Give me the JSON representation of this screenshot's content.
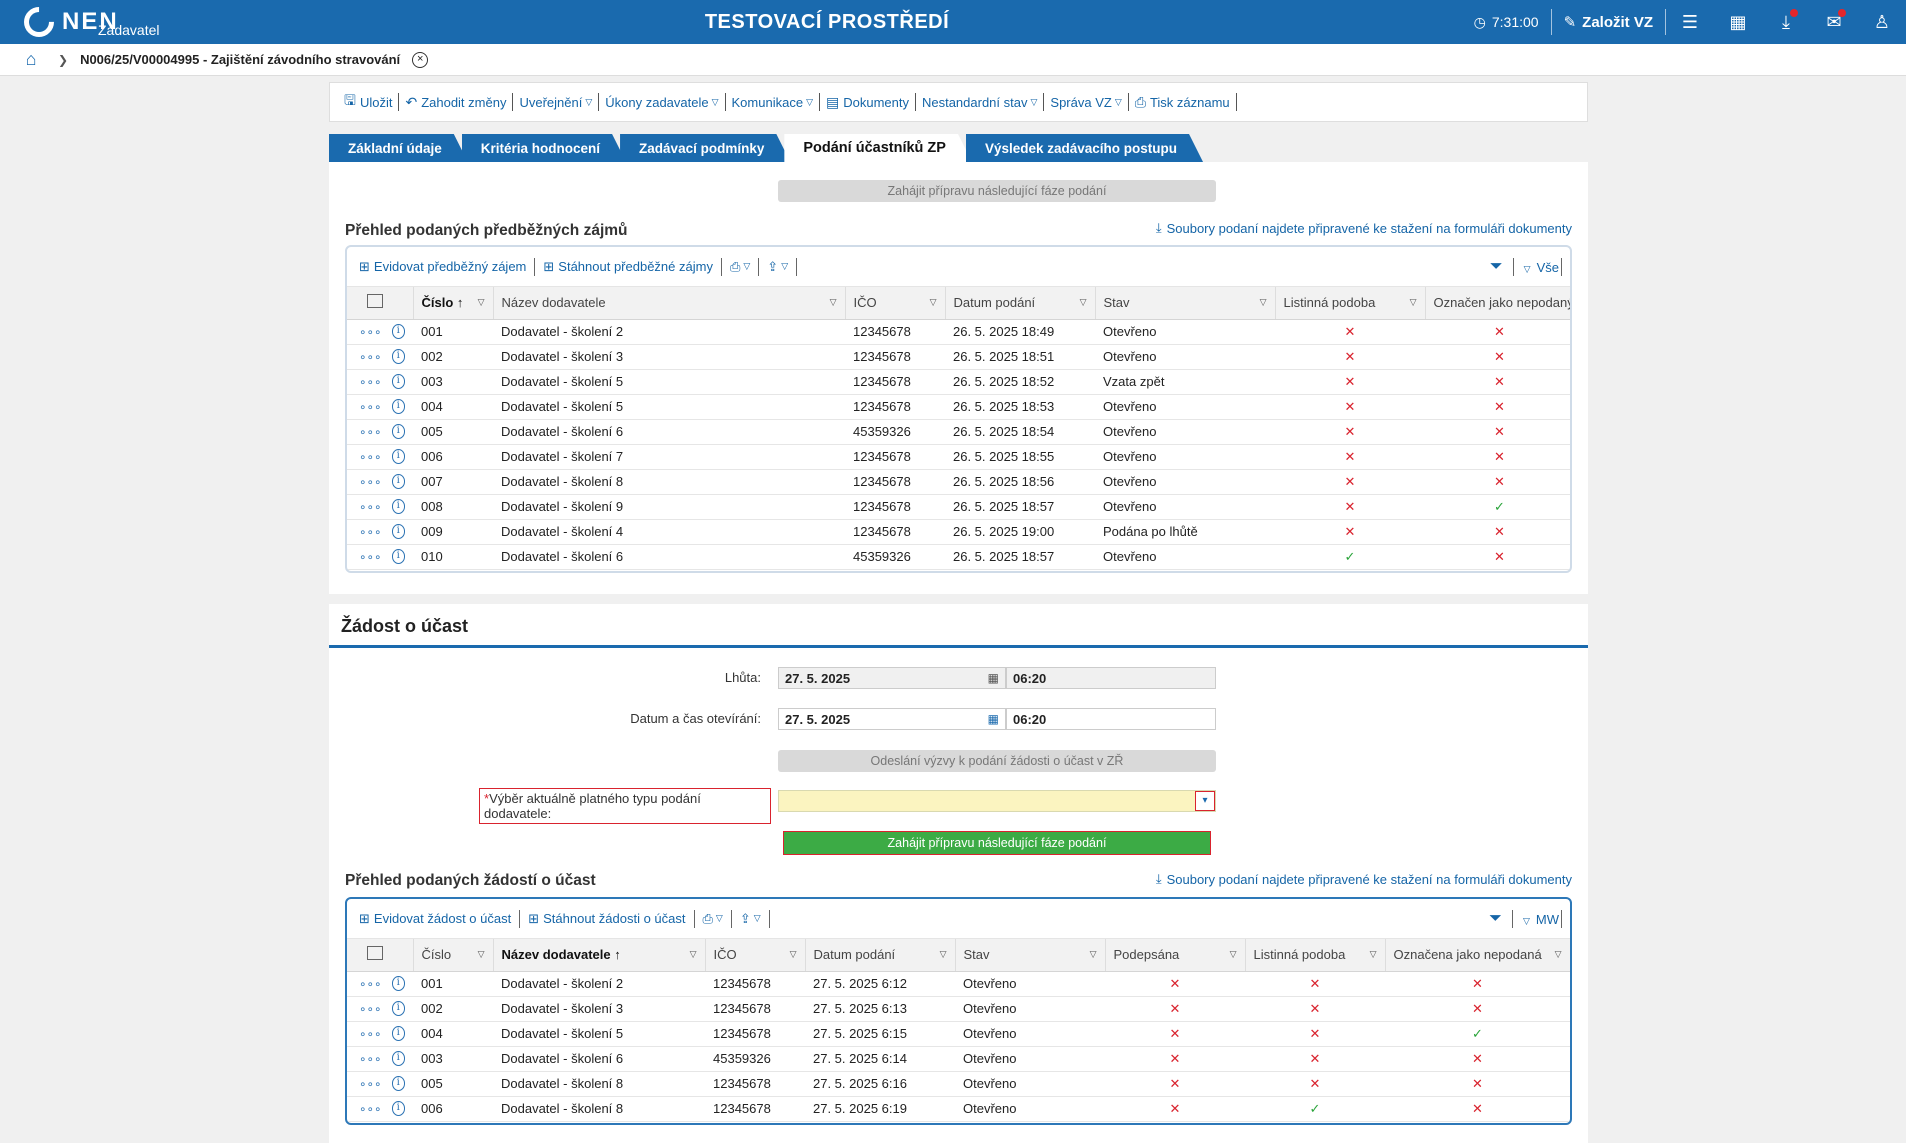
{
  "topbar": {
    "logo": "NEN",
    "logo_sub": "Zadavatel",
    "env_title": "TESTOVACÍ PROSTŘEDÍ",
    "clock": "7:31:00",
    "create_label": "Založit VZ"
  },
  "breadcrumb": {
    "title": "N006/25/V00004995 - Zajištění závodního stravování"
  },
  "toolbar": {
    "save": "Uložit",
    "discard": "Zahodit změny",
    "publish": "Uveřejnění",
    "acts": "Úkony zadavatele",
    "comm": "Komunikace",
    "docs": "Dokumenty",
    "nonstd": "Nestandardní stav",
    "manage": "Správa VZ",
    "print": "Tisk záznamu"
  },
  "tabs": [
    "Základní údaje",
    "Kritéria hodnocení",
    "Zadávací podmínky",
    "Podání účastníků ZP",
    "Výsledek zadávacího postupu"
  ],
  "section1": {
    "next_phase_btn": "Zahájit přípravu následující fáze podání",
    "title": "Přehled podaných předběžných zájmů",
    "download_link": "Soubory podaní najdete připravené ke stažení na formuláři dokumenty",
    "tools": {
      "add": "Evidovat předběžný zájem",
      "download": "Stáhnout předběžné zájmy",
      "view": "Vše"
    },
    "headers": [
      "Číslo",
      "Název dodavatele",
      "IČO",
      "Datum podání",
      "Stav",
      "Listinná podoba",
      "Označen jako nepodaný"
    ],
    "rows": [
      [
        "001",
        "Dodavatel - školení 2",
        "12345678",
        "26. 5. 2025 18:49",
        "Otevřeno",
        "x",
        "x"
      ],
      [
        "002",
        "Dodavatel - školení 3",
        "12345678",
        "26. 5. 2025 18:51",
        "Otevřeno",
        "x",
        "x"
      ],
      [
        "003",
        "Dodavatel - školení 5",
        "12345678",
        "26. 5. 2025 18:52",
        "Vzata zpět",
        "x",
        "x"
      ],
      [
        "004",
        "Dodavatel - školení 5",
        "12345678",
        "26. 5. 2025 18:53",
        "Otevřeno",
        "x",
        "x"
      ],
      [
        "005",
        "Dodavatel - školení 6",
        "45359326",
        "26. 5. 2025 18:54",
        "Otevřeno",
        "x",
        "x"
      ],
      [
        "006",
        "Dodavatel - školení 7",
        "12345678",
        "26. 5. 2025 18:55",
        "Otevřeno",
        "x",
        "x"
      ],
      [
        "007",
        "Dodavatel - školení 8",
        "12345678",
        "26. 5. 2025 18:56",
        "Otevřeno",
        "x",
        "x"
      ],
      [
        "008",
        "Dodavatel - školení 9",
        "12345678",
        "26. 5. 2025 18:57",
        "Otevřeno",
        "x",
        "ok"
      ],
      [
        "009",
        "Dodavatel - školení 4",
        "12345678",
        "26. 5. 2025 19:00",
        "Podána po lhůtě",
        "x",
        "x"
      ],
      [
        "010",
        "Dodavatel - školení 6",
        "45359326",
        "26. 5. 2025 18:57",
        "Otevřeno",
        "ok",
        "x"
      ]
    ]
  },
  "section2": {
    "title": "Žádost o účast",
    "deadline_label": "Lhůta:",
    "deadline_date": "27. 5. 2025",
    "deadline_time": "06:20",
    "open_label": "Datum a čas otevírání:",
    "open_date": "27. 5. 2025",
    "open_time": "06:20",
    "send_btn": "Odeslání výzvy k podání žádosti o účast v ZŘ",
    "select_label": "Výběr aktuálně platného typu podání dodavatele:",
    "select_star": "*",
    "start_btn": "Zahájit přípravu následující fáze podání",
    "list_title": "Přehled podaných žádostí o účast",
    "download_link": "Soubory podaní najdete připravené ke stažení na formuláři dokumenty",
    "tools": {
      "add": "Evidovat žádost o účast",
      "download": "Stáhnout žádosti o účast",
      "view": "MW"
    },
    "headers": [
      "Číslo",
      "Název dodavatele",
      "IČO",
      "Datum podání",
      "Stav",
      "Podepsána",
      "Listinná podoba",
      "Označena jako nepodaná"
    ],
    "rows": [
      [
        "001",
        "Dodavatel - školení 2",
        "12345678",
        "27. 5. 2025 6:12",
        "Otevřeno",
        "x",
        "x",
        "x"
      ],
      [
        "002",
        "Dodavatel - školení 3",
        "12345678",
        "27. 5. 2025 6:13",
        "Otevřeno",
        "x",
        "x",
        "x"
      ],
      [
        "004",
        "Dodavatel - školení 5",
        "12345678",
        "27. 5. 2025 6:15",
        "Otevřeno",
        "x",
        "x",
        "ok"
      ],
      [
        "003",
        "Dodavatel - školení 6",
        "45359326",
        "27. 5. 2025 6:14",
        "Otevřeno",
        "x",
        "x",
        "x"
      ],
      [
        "005",
        "Dodavatel - školení 8",
        "12345678",
        "27. 5. 2025 6:16",
        "Otevřeno",
        "x",
        "x",
        "x"
      ],
      [
        "006",
        "Dodavatel - školení 8",
        "12345678",
        "27. 5. 2025 6:19",
        "Otevřeno",
        "x",
        "ok",
        "x"
      ]
    ]
  },
  "colors": {
    "brand": "#1a6aae",
    "green": "#3cab45",
    "red": "#d9232e"
  }
}
